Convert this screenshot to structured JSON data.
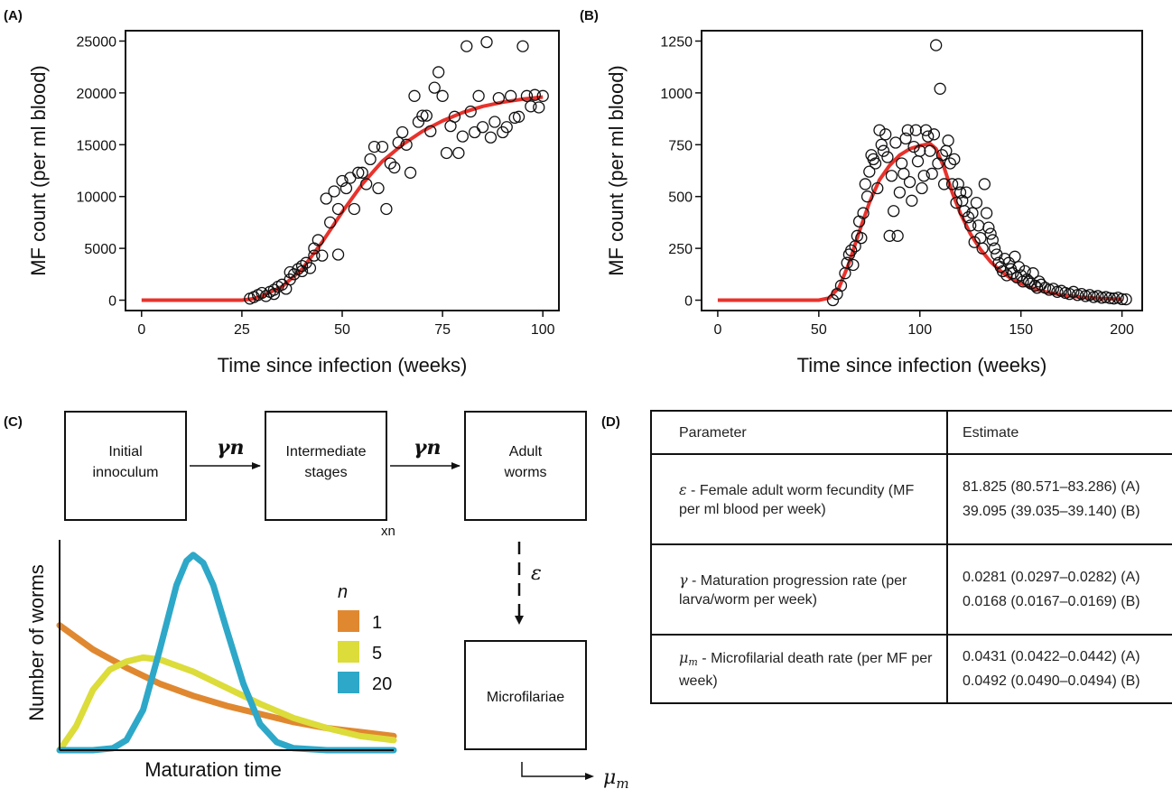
{
  "panels": {
    "a": "(A)",
    "b": "(B)",
    "c": "(C)",
    "d": "(D)"
  },
  "chart_data": [
    {
      "type": "scatter",
      "panel": "(A)",
      "xlabel": "Time since infection (weeks)",
      "ylabel": "MF count (per ml blood)",
      "xlim": [
        -4,
        104
      ],
      "ylim": [
        -1000,
        26000
      ],
      "xticks": [
        0,
        25,
        50,
        75,
        100
      ],
      "yticks": [
        0,
        5000,
        10000,
        15000,
        20000,
        25000
      ],
      "grid": false,
      "points": [
        [
          27,
          150
        ],
        [
          28,
          300
        ],
        [
          29,
          500
        ],
        [
          30,
          700
        ],
        [
          31,
          400
        ],
        [
          32,
          800
        ],
        [
          33,
          1000
        ],
        [
          33,
          600
        ],
        [
          34,
          1300
        ],
        [
          35,
          1500
        ],
        [
          36,
          1100
        ],
        [
          37,
          2000
        ],
        [
          37,
          2700
        ],
        [
          38,
          2500
        ],
        [
          39,
          3000
        ],
        [
          40,
          3300
        ],
        [
          40,
          2800
        ],
        [
          41,
          3600
        ],
        [
          42,
          3100
        ],
        [
          43,
          4300
        ],
        [
          43,
          5000
        ],
        [
          44,
          5800
        ],
        [
          45,
          4300
        ],
        [
          46,
          9800
        ],
        [
          47,
          7500
        ],
        [
          48,
          10500
        ],
        [
          49,
          8800
        ],
        [
          49,
          4400
        ],
        [
          50,
          11500
        ],
        [
          51,
          10800
        ],
        [
          52,
          11800
        ],
        [
          53,
          8800
        ],
        [
          54,
          12300
        ],
        [
          55,
          12300
        ],
        [
          56,
          11200
        ],
        [
          57,
          13600
        ],
        [
          58,
          14800
        ],
        [
          59,
          10800
        ],
        [
          60,
          14800
        ],
        [
          61,
          8800
        ],
        [
          62,
          13200
        ],
        [
          63,
          12800
        ],
        [
          64,
          15200
        ],
        [
          65,
          16200
        ],
        [
          66,
          15000
        ],
        [
          67,
          12300
        ],
        [
          68,
          19700
        ],
        [
          69,
          17200
        ],
        [
          70,
          17800
        ],
        [
          71,
          17800
        ],
        [
          72,
          16300
        ],
        [
          73,
          20500
        ],
        [
          74,
          22000
        ],
        [
          75,
          19700
        ],
        [
          76,
          14200
        ],
        [
          77,
          16800
        ],
        [
          78,
          17700
        ],
        [
          79,
          14200
        ],
        [
          80,
          15800
        ],
        [
          81,
          24500
        ],
        [
          82,
          18200
        ],
        [
          83,
          16200
        ],
        [
          84,
          19700
        ],
        [
          85,
          16700
        ],
        [
          86,
          24900
        ],
        [
          87,
          15700
        ],
        [
          88,
          17200
        ],
        [
          89,
          19500
        ],
        [
          90,
          16200
        ],
        [
          91,
          16700
        ],
        [
          92,
          19700
        ],
        [
          93,
          17600
        ],
        [
          94,
          17700
        ],
        [
          95,
          24500
        ],
        [
          96,
          19700
        ],
        [
          97,
          18700
        ],
        [
          98,
          19800
        ],
        [
          99,
          18600
        ],
        [
          100,
          19700
        ]
      ],
      "fit": [
        [
          0,
          0
        ],
        [
          10,
          0
        ],
        [
          20,
          0
        ],
        [
          25,
          0
        ],
        [
          28,
          150
        ],
        [
          30,
          400
        ],
        [
          35,
          1300
        ],
        [
          40,
          3000
        ],
        [
          45,
          5600
        ],
        [
          50,
          8500
        ],
        [
          55,
          11200
        ],
        [
          60,
          13400
        ],
        [
          65,
          15000
        ],
        [
          70,
          16300
        ],
        [
          75,
          17300
        ],
        [
          80,
          18100
        ],
        [
          85,
          18700
        ],
        [
          90,
          19100
        ],
        [
          95,
          19400
        ],
        [
          100,
          19600
        ]
      ]
    },
    {
      "type": "scatter",
      "panel": "(B)",
      "xlabel": "Time since infection (weeks)",
      "ylabel": "MF count (per ml blood)",
      "xlim": [
        -8,
        210
      ],
      "ylim": [
        -50,
        1300
      ],
      "xticks": [
        0,
        50,
        100,
        150,
        200
      ],
      "yticks": [
        0,
        250,
        500,
        750,
        1000,
        1250
      ],
      "grid": false,
      "points": [
        [
          57,
          0
        ],
        [
          59,
          30
        ],
        [
          61,
          70
        ],
        [
          63,
          130
        ],
        [
          64,
          180
        ],
        [
          65,
          220
        ],
        [
          66,
          240
        ],
        [
          67,
          170
        ],
        [
          68,
          260
        ],
        [
          69,
          310
        ],
        [
          70,
          380
        ],
        [
          71,
          300
        ],
        [
          72,
          420
        ],
        [
          73,
          560
        ],
        [
          74,
          500
        ],
        [
          75,
          620
        ],
        [
          76,
          700
        ],
        [
          77,
          680
        ],
        [
          78,
          660
        ],
        [
          79,
          540
        ],
        [
          80,
          820
        ],
        [
          81,
          750
        ],
        [
          82,
          720
        ],
        [
          83,
          800
        ],
        [
          84,
          690
        ],
        [
          85,
          310
        ],
        [
          86,
          600
        ],
        [
          87,
          430
        ],
        [
          88,
          760
        ],
        [
          89,
          310
        ],
        [
          90,
          520
        ],
        [
          91,
          660
        ],
        [
          92,
          610
        ],
        [
          93,
          780
        ],
        [
          94,
          820
        ],
        [
          95,
          570
        ],
        [
          96,
          480
        ],
        [
          97,
          740
        ],
        [
          98,
          820
        ],
        [
          99,
          670
        ],
        [
          100,
          720
        ],
        [
          101,
          540
        ],
        [
          102,
          600
        ],
        [
          103,
          820
        ],
        [
          104,
          790
        ],
        [
          105,
          720
        ],
        [
          106,
          610
        ],
        [
          107,
          800
        ],
        [
          108,
          1230
        ],
        [
          109,
          660
        ],
        [
          110,
          1020
        ],
        [
          111,
          700
        ],
        [
          112,
          560
        ],
        [
          113,
          720
        ],
        [
          114,
          770
        ],
        [
          115,
          660
        ],
        [
          116,
          560
        ],
        [
          117,
          680
        ],
        [
          118,
          470
        ],
        [
          119,
          560
        ],
        [
          120,
          520
        ],
        [
          121,
          480
        ],
        [
          122,
          430
        ],
        [
          123,
          520
        ],
        [
          124,
          400
        ],
        [
          125,
          360
        ],
        [
          126,
          420
        ],
        [
          127,
          280
        ],
        [
          128,
          470
        ],
        [
          129,
          360
        ],
        [
          130,
          300
        ],
        [
          131,
          250
        ],
        [
          132,
          560
        ],
        [
          133,
          420
        ],
        [
          134,
          350
        ],
        [
          135,
          320
        ],
        [
          136,
          290
        ],
        [
          137,
          250
        ],
        [
          138,
          220
        ],
        [
          139,
          180
        ],
        [
          140,
          160
        ],
        [
          141,
          140
        ],
        [
          142,
          200
        ],
        [
          143,
          120
        ],
        [
          144,
          180
        ],
        [
          145,
          150
        ],
        [
          146,
          130
        ],
        [
          147,
          210
        ],
        [
          148,
          110
        ],
        [
          149,
          160
        ],
        [
          150,
          120
        ],
        [
          151,
          90
        ],
        [
          152,
          140
        ],
        [
          153,
          100
        ],
        [
          154,
          90
        ],
        [
          155,
          80
        ],
        [
          156,
          130
        ],
        [
          157,
          70
        ],
        [
          158,
          60
        ],
        [
          159,
          90
        ],
        [
          160,
          75
        ],
        [
          162,
          60
        ],
        [
          164,
          50
        ],
        [
          166,
          55
        ],
        [
          168,
          40
        ],
        [
          170,
          45
        ],
        [
          172,
          35
        ],
        [
          174,
          30
        ],
        [
          176,
          40
        ],
        [
          178,
          25
        ],
        [
          180,
          30
        ],
        [
          182,
          20
        ],
        [
          184,
          25
        ],
        [
          186,
          15
        ],
        [
          188,
          20
        ],
        [
          190,
          12
        ],
        [
          192,
          15
        ],
        [
          194,
          10
        ],
        [
          196,
          8
        ],
        [
          198,
          12
        ],
        [
          200,
          5
        ],
        [
          202,
          4
        ]
      ],
      "fit": [
        [
          0,
          0
        ],
        [
          20,
          0
        ],
        [
          40,
          0
        ],
        [
          50,
          0
        ],
        [
          55,
          10
        ],
        [
          60,
          60
        ],
        [
          65,
          180
        ],
        [
          70,
          330
        ],
        [
          75,
          470
        ],
        [
          80,
          580
        ],
        [
          85,
          650
        ],
        [
          90,
          700
        ],
        [
          95,
          730
        ],
        [
          100,
          745
        ],
        [
          105,
          755
        ],
        [
          108,
          730
        ],
        [
          112,
          640
        ],
        [
          116,
          520
        ],
        [
          120,
          420
        ],
        [
          125,
          320
        ],
        [
          130,
          245
        ],
        [
          135,
          185
        ],
        [
          140,
          140
        ],
        [
          145,
          105
        ],
        [
          150,
          80
        ],
        [
          155,
          60
        ],
        [
          160,
          45
        ],
        [
          170,
          25
        ],
        [
          180,
          14
        ],
        [
          190,
          8
        ],
        [
          200,
          4
        ]
      ]
    },
    {
      "type": "line",
      "panel": "(C)",
      "xlabel": "Maturation time",
      "ylabel": "Number of worms",
      "legend_title": "n",
      "legend_position": "right",
      "xlim": [
        0,
        10
      ],
      "ylim": [
        0,
        1
      ],
      "series": [
        {
          "name": "1",
          "color": "#e08830",
          "x": [
            0,
            1,
            2,
            3,
            4,
            5,
            6,
            7,
            8,
            9,
            10
          ],
          "values": [
            0.62,
            0.5,
            0.41,
            0.33,
            0.27,
            0.22,
            0.18,
            0.14,
            0.11,
            0.09,
            0.07
          ]
        },
        {
          "name": "5",
          "color": "#dcdc3a",
          "x": [
            0,
            0.5,
            1,
            1.5,
            2,
            2.5,
            3,
            4,
            5,
            6,
            7,
            8,
            9,
            10
          ],
          "values": [
            0,
            0.12,
            0.3,
            0.4,
            0.44,
            0.46,
            0.45,
            0.39,
            0.31,
            0.23,
            0.16,
            0.11,
            0.07,
            0.05
          ]
        },
        {
          "name": "20",
          "color": "#2ea8c8",
          "x": [
            0,
            1,
            1.6,
            2,
            2.5,
            3,
            3.5,
            3.8,
            4,
            4.3,
            4.6,
            5,
            5.5,
            6,
            6.5,
            7,
            8,
            10
          ],
          "values": [
            0,
            0,
            0.01,
            0.05,
            0.2,
            0.5,
            0.82,
            0.94,
            0.97,
            0.93,
            0.82,
            0.6,
            0.33,
            0.13,
            0.04,
            0.01,
            0,
            0
          ]
        }
      ]
    }
  ],
  "diagram": {
    "boxes": {
      "initial": [
        "Initial",
        "innoculum"
      ],
      "intermediate": [
        "Intermediate",
        "stages"
      ],
      "adult": [
        "Adult",
        "worms"
      ],
      "microfilariae": "Microfilariae"
    },
    "rate": "γn",
    "multiplier": "xn",
    "fecundity": "ε",
    "death": "μ",
    "death_sub": "m"
  },
  "table": {
    "header": {
      "parameter": "Parameter",
      "estimate": "Estimate"
    },
    "rows": [
      {
        "symbol": "ε",
        "symbol_sub": "",
        "param": " - Female adult worm fecundity (MF per ml blood per week)",
        "est_a": "81.825 (80.571–83.286) (A)",
        "est_b": "39.095 (39.035–39.140) (B)"
      },
      {
        "symbol": "γ",
        "symbol_sub": "",
        "param": " - Maturation progression rate (per larva/worm per week)",
        "est_a": "0.0281 (0.0297–0.0282) (A)",
        "est_b": "0.0168 (0.0167–0.0169) (B)"
      },
      {
        "symbol": "μ",
        "symbol_sub": "m",
        "param": " - Microfilarial death rate (per MF per week)",
        "est_a": "0.0431 (0.0422–0.0442) (A)",
        "est_b": "0.0492 (0.0490–0.0494) (B)"
      }
    ]
  }
}
